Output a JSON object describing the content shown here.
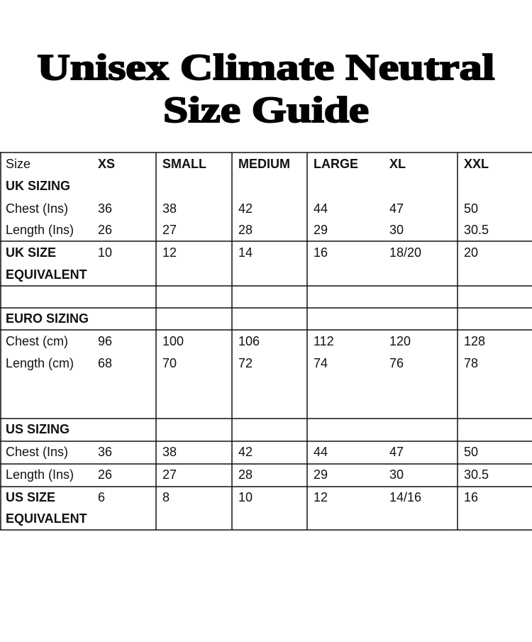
{
  "title": [
    "Unisex Climate Neutral",
    "Size Guide"
  ],
  "table": {
    "lines": [
      {
        "label": "Size",
        "values": [
          "XS",
          "SMALL",
          "MEDIUM",
          "LARGE",
          "XL",
          "XXL"
        ]
      },
      {
        "label": "UK SIZING"
      },
      {
        "label": "Chest (Ins)",
        "values": [
          36,
          38,
          42,
          44,
          47,
          50
        ]
      },
      {
        "label": "Length (Ins)",
        "values": [
          26,
          27,
          28,
          29,
          30,
          30.5
        ]
      },
      {
        "label": "UK SIZE",
        "values": [
          10,
          12,
          14,
          16,
          "18/20",
          20
        ]
      },
      {
        "label": "EQUIVALENT"
      },
      {
        "label": "EURO SIZING"
      },
      {
        "label": "Chest (cm)",
        "values": [
          96,
          100,
          106,
          112,
          120,
          128
        ]
      },
      {
        "label": "Length (cm)",
        "values": [
          68,
          70,
          72,
          74,
          76,
          78
        ]
      },
      {
        "label": "US SIZING"
      },
      {
        "label": "Chest (Ins)",
        "values": [
          36,
          38,
          42,
          44,
          47,
          50
        ]
      },
      {
        "label": "Length (Ins)",
        "values": [
          26,
          27,
          28,
          29,
          30,
          30.5
        ]
      },
      {
        "label": "US SIZE",
        "values": [
          6,
          8,
          10,
          12,
          "14/16",
          16
        ]
      },
      {
        "label": "EQUIVALENT"
      }
    ]
  }
}
